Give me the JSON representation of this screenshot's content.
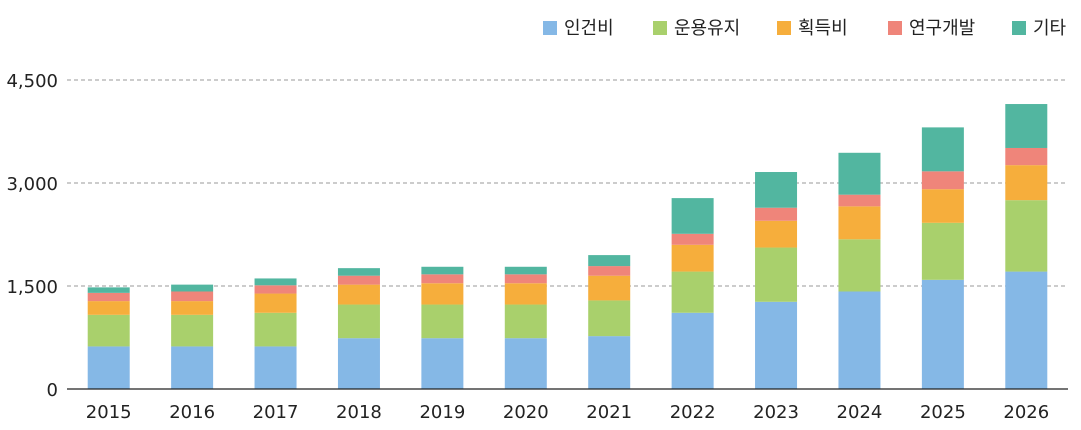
{
  "chart_data": {
    "type": "bar",
    "stacked": true,
    "title": "",
    "xlabel": "",
    "ylabel": "",
    "ylim": [
      0,
      4500
    ],
    "yticks": [
      0,
      1500,
      3000,
      4500
    ],
    "ytick_labels": [
      "0",
      "1,500",
      "3,000",
      "4,500"
    ],
    "grid": "horizontal-dashed",
    "legend_position": "top-right",
    "categories": [
      "2015",
      "2016",
      "2017",
      "2018",
      "2019",
      "2020",
      "2021",
      "2022",
      "2023",
      "2024",
      "2025",
      "2026"
    ],
    "series": [
      {
        "name": "인건비",
        "color": "#85b8e6",
        "values": [
          620,
          620,
          620,
          740,
          740,
          740,
          770,
          1110,
          1270,
          1420,
          1590,
          1710
        ]
      },
      {
        "name": "운용유지",
        "color": "#a9d06c",
        "values": [
          460,
          460,
          490,
          490,
          490,
          490,
          520,
          600,
          790,
          760,
          830,
          1040
        ]
      },
      {
        "name": "획득비",
        "color": "#f6ae3c",
        "values": [
          200,
          200,
          280,
          290,
          310,
          310,
          360,
          390,
          390,
          480,
          490,
          510
        ]
      },
      {
        "name": "연구개발",
        "color": "#ef857a",
        "values": [
          120,
          140,
          120,
          130,
          130,
          130,
          140,
          160,
          190,
          170,
          260,
          250
        ]
      },
      {
        "name": "기타",
        "color": "#52b6a0",
        "values": [
          80,
          100,
          100,
          110,
          110,
          110,
          160,
          520,
          520,
          610,
          640,
          640
        ]
      }
    ]
  }
}
